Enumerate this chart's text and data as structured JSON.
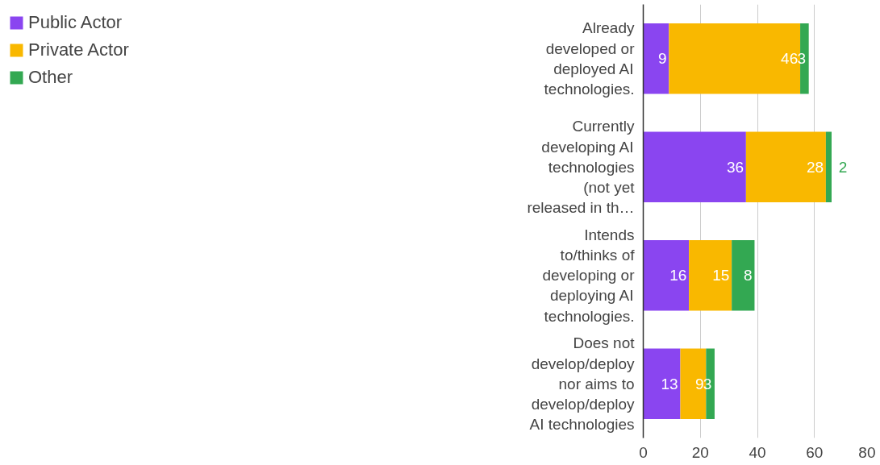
{
  "chart_data": {
    "type": "bar",
    "orientation": "horizontal",
    "stacked": true,
    "categories": [
      "Already developed or deployed AI technologies.",
      "Currently developing AI technologies (not yet released in th…",
      "Intends to/thinks of developing or deploying AI technologies.",
      "Does not develop/deploy nor aims to develop/deploy AI technologies"
    ],
    "series": [
      {
        "name": "Public Actor",
        "color": "#8a45f0",
        "values": [
          9,
          36,
          16,
          13
        ]
      },
      {
        "name": "Private Actor",
        "color": "#f9b800",
        "values": [
          46,
          28,
          15,
          9
        ]
      },
      {
        "name": "Other",
        "color": "#33a852",
        "values": [
          3,
          2,
          8,
          3
        ]
      }
    ],
    "xlim": [
      0,
      80
    ],
    "xticks": [
      0,
      20,
      40,
      60,
      80
    ],
    "grid": "x",
    "legend": "top left",
    "data_labels": true
  }
}
